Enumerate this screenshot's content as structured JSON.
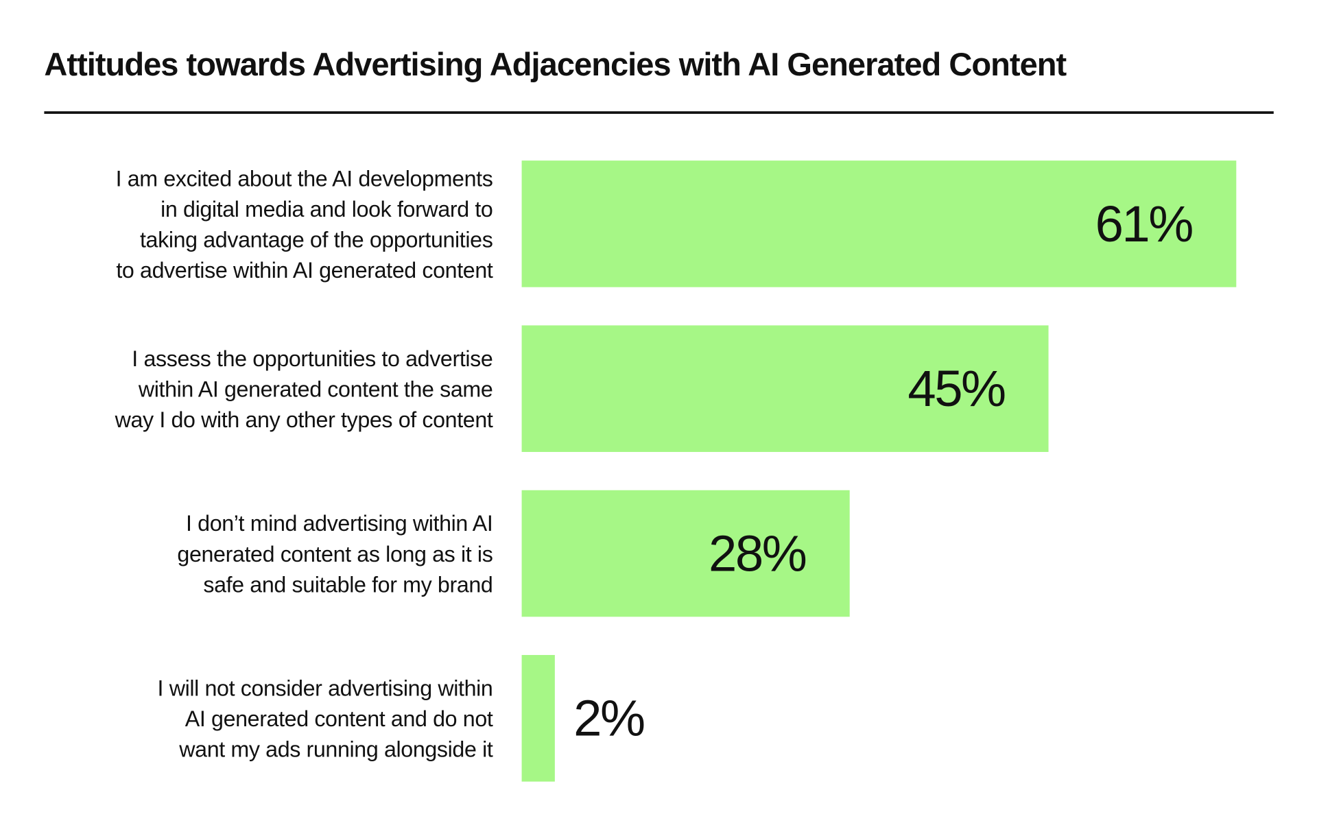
{
  "chart_data": {
    "type": "bar",
    "orientation": "horizontal",
    "title": "Attitudes towards Advertising Adjacencies with AI Generated Content",
    "categories": [
      "I am excited about the AI developments in digital media and look forward to taking advantage of the opportunities to advertise within AI generated content",
      "I assess the opportunities to advertise within AI generated content the same way I do with any other types of content",
      "I don’t mind advertising within AI generated content as long as it is safe and suitable for my brand",
      "I will not consider advertising within AI generated content and do not want my ads running alongside it"
    ],
    "values": [
      61,
      45,
      28,
      2
    ],
    "value_labels": [
      "61%",
      "45%",
      "28%",
      "2%"
    ],
    "unit": "%",
    "xlim": [
      0,
      61
    ],
    "grid": false,
    "bar_color": "#a6f786",
    "xlabel": "",
    "ylabel": ""
  }
}
